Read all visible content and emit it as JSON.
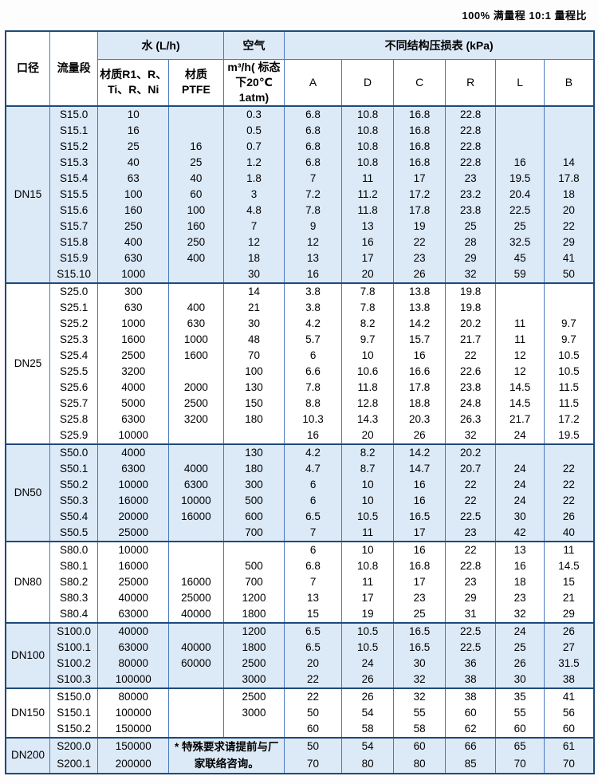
{
  "page": {
    "top_note": "100% 满量程  10:1 量程比"
  },
  "colors": {
    "grid_border": "#4b79c1",
    "strong_border": "#1e4a7a",
    "group_fill": "#dce9f7",
    "plain_fill": "#ffffff",
    "text": "#000000"
  },
  "header": {
    "diameter": "口径",
    "flow_segment": "流量段",
    "water_group": "水 (L/h)",
    "water_material_1": "材质R1、R、Ti、R、Ni",
    "water_material_2": "材质 PTFE",
    "air_group": "空气",
    "air_sub": "m³/h( 标态下20℃ 1atm)",
    "loss_group": "不同结构压损表  (kPa)",
    "loss_columns": [
      "A",
      "D",
      "C",
      "R",
      "L",
      "B"
    ]
  },
  "dn200_note": "* 特殊要求请提前与厂家联络咨询。",
  "groups": [
    {
      "diameter": "DN15",
      "shaded": true,
      "note": false,
      "rows": [
        [
          "S15.0",
          "10",
          "",
          "0.3",
          "6.8",
          "10.8",
          "16.8",
          "22.8",
          "",
          ""
        ],
        [
          "S15.1",
          "16",
          "",
          "0.5",
          "6.8",
          "10.8",
          "16.8",
          "22.8",
          "",
          ""
        ],
        [
          "S15.2",
          "25",
          "16",
          "0.7",
          "6.8",
          "10.8",
          "16.8",
          "22.8",
          "",
          ""
        ],
        [
          "S15.3",
          "40",
          "25",
          "1.2",
          "6.8",
          "10.8",
          "16.8",
          "22.8",
          "16",
          "14"
        ],
        [
          "S15.4",
          "63",
          "40",
          "1.8",
          "7",
          "11",
          "17",
          "23",
          "19.5",
          "17.8"
        ],
        [
          "S15.5",
          "100",
          "60",
          "3",
          "7.2",
          "11.2",
          "17.2",
          "23.2",
          "20.4",
          "18"
        ],
        [
          "S15.6",
          "160",
          "100",
          "4.8",
          "7.8",
          "11.8",
          "17.8",
          "23.8",
          "22.5",
          "20"
        ],
        [
          "S15.7",
          "250",
          "160",
          "7",
          "9",
          "13",
          "19",
          "25",
          "25",
          "22"
        ],
        [
          "S15.8",
          "400",
          "250",
          "12",
          "12",
          "16",
          "22",
          "28",
          "32.5",
          "29"
        ],
        [
          "S15.9",
          "630",
          "400",
          "18",
          "13",
          "17",
          "23",
          "29",
          "45",
          "41"
        ],
        [
          "S15.10",
          "1000",
          "",
          "30",
          "16",
          "20",
          "26",
          "32",
          "59",
          "50"
        ]
      ]
    },
    {
      "diameter": "DN25",
      "shaded": false,
      "note": false,
      "rows": [
        [
          "S25.0",
          "300",
          "",
          "14",
          "3.8",
          "7.8",
          "13.8",
          "19.8",
          "",
          ""
        ],
        [
          "S25.1",
          "630",
          "400",
          "21",
          "3.8",
          "7.8",
          "13.8",
          "19.8",
          "",
          ""
        ],
        [
          "S25.2",
          "1000",
          "630",
          "30",
          "4.2",
          "8.2",
          "14.2",
          "20.2",
          "11",
          "9.7"
        ],
        [
          "S25.3",
          "1600",
          "1000",
          "48",
          "5.7",
          "9.7",
          "15.7",
          "21.7",
          "11",
          "9.7"
        ],
        [
          "S25.4",
          "2500",
          "1600",
          "70",
          "6",
          "10",
          "16",
          "22",
          "12",
          "10.5"
        ],
        [
          "S25.5",
          "3200",
          "",
          "100",
          "6.6",
          "10.6",
          "16.6",
          "22.6",
          "12",
          "10.5"
        ],
        [
          "S25.6",
          "4000",
          "2000",
          "130",
          "7.8",
          "11.8",
          "17.8",
          "23.8",
          "14.5",
          "11.5"
        ],
        [
          "S25.7",
          "5000",
          "2500",
          "150",
          "8.8",
          "12.8",
          "18.8",
          "24.8",
          "14.5",
          "11.5"
        ],
        [
          "S25.8",
          "6300",
          "3200",
          "180",
          "10.3",
          "14.3",
          "20.3",
          "26.3",
          "21.7",
          "17.2"
        ],
        [
          "S25.9",
          "10000",
          "",
          "",
          "16",
          "20",
          "26",
          "32",
          "24",
          "19.5"
        ]
      ]
    },
    {
      "diameter": "DN50",
      "shaded": true,
      "note": false,
      "rows": [
        [
          "S50.0",
          "4000",
          "",
          "130",
          "4.2",
          "8.2",
          "14.2",
          "20.2",
          "",
          ""
        ],
        [
          "S50.1",
          "6300",
          "4000",
          "180",
          "4.7",
          "8.7",
          "14.7",
          "20.7",
          "24",
          "22"
        ],
        [
          "S50.2",
          "10000",
          "6300",
          "300",
          "6",
          "10",
          "16",
          "22",
          "24",
          "22"
        ],
        [
          "S50.3",
          "16000",
          "10000",
          "500",
          "6",
          "10",
          "16",
          "22",
          "24",
          "22"
        ],
        [
          "S50.4",
          "20000",
          "16000",
          "600",
          "6.5",
          "10.5",
          "16.5",
          "22.5",
          "30",
          "26"
        ],
        [
          "S50.5",
          "25000",
          "",
          "700",
          "7",
          "11",
          "17",
          "23",
          "42",
          "40"
        ]
      ]
    },
    {
      "diameter": "DN80",
      "shaded": false,
      "note": false,
      "rows": [
        [
          "S80.0",
          "10000",
          "",
          "",
          "6",
          "10",
          "16",
          "22",
          "13",
          "11"
        ],
        [
          "S80.1",
          "16000",
          "",
          "500",
          "6.8",
          "10.8",
          "16.8",
          "22.8",
          "16",
          "14.5"
        ],
        [
          "S80.2",
          "25000",
          "16000",
          "700",
          "7",
          "11",
          "17",
          "23",
          "18",
          "15"
        ],
        [
          "S80.3",
          "40000",
          "25000",
          "1200",
          "13",
          "17",
          "23",
          "29",
          "23",
          "21"
        ],
        [
          "S80.4",
          "63000",
          "40000",
          "1800",
          "15",
          "19",
          "25",
          "31",
          "32",
          "29"
        ]
      ]
    },
    {
      "diameter": "DN100",
      "shaded": true,
      "note": false,
      "rows": [
        [
          "S100.0",
          "40000",
          "",
          "1200",
          "6.5",
          "10.5",
          "16.5",
          "22.5",
          "24",
          "26"
        ],
        [
          "S100.1",
          "63000",
          "40000",
          "1800",
          "6.5",
          "10.5",
          "16.5",
          "22.5",
          "25",
          "27"
        ],
        [
          "S100.2",
          "80000",
          "60000",
          "2500",
          "20",
          "24",
          "30",
          "36",
          "26",
          "31.5"
        ],
        [
          "S100.3",
          "100000",
          "",
          "3000",
          "22",
          "26",
          "32",
          "38",
          "30",
          "38"
        ]
      ]
    },
    {
      "diameter": "DN150",
      "shaded": false,
      "note": false,
      "rows": [
        [
          "S150.0",
          "80000",
          "",
          "2500",
          "22",
          "26",
          "32",
          "38",
          "35",
          "41"
        ],
        [
          "S150.1",
          "100000",
          "",
          "3000",
          "50",
          "54",
          "55",
          "60",
          "55",
          "56"
        ],
        [
          "S150.2",
          "150000",
          "",
          "",
          "60",
          "58",
          "58",
          "62",
          "60",
          "60"
        ]
      ]
    },
    {
      "diameter": "DN200",
      "shaded": true,
      "note": true,
      "rows": [
        [
          "S200.0",
          "150000",
          "",
          "",
          "50",
          "54",
          "60",
          "66",
          "65",
          "61"
        ],
        [
          "S200.1",
          "200000",
          "",
          "",
          "70",
          "80",
          "80",
          "85",
          "70",
          "70"
        ]
      ]
    }
  ]
}
